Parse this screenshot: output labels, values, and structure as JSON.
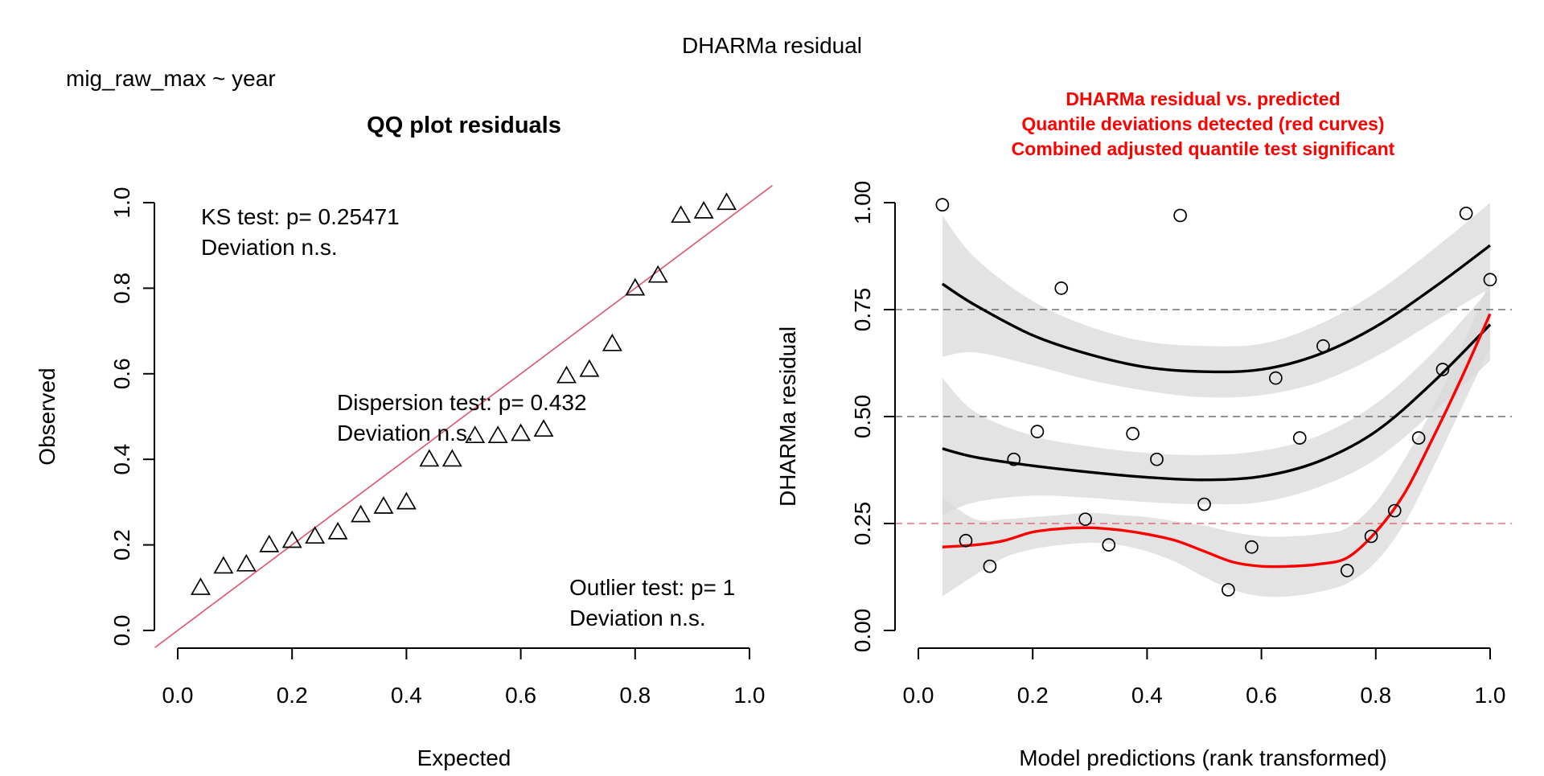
{
  "suptitle": "DHARMa residual",
  "formula": "mig_raw_max ~ year",
  "qq": {
    "title": "QQ plot residuals",
    "xlabel": "Expected",
    "ylabel": "Observed",
    "ks_line1": "KS test: p= 0.25471",
    "ks_line2": "Deviation  n.s.",
    "disp_line1": "Dispersion test: p= 0.432",
    "disp_line2": "Deviation  n.s.",
    "out_line1": "Outlier test: p= 1",
    "out_line2": "Deviation  n.s.",
    "line_color": "#DF536B"
  },
  "resid": {
    "title1": "DHARMa residual vs. predicted",
    "title2": "Quantile deviations detected (red curves)",
    "title3": "Combined adjusted quantile test significant",
    "title_color": "#FF0000",
    "xlabel": "Model predictions (rank transformed)",
    "ylabel": "DHARMa residual"
  },
  "chart_data": [
    {
      "type": "scatter",
      "title": "QQ plot residuals",
      "xlabel": "Expected",
      "ylabel": "Observed",
      "xlim": [
        0,
        1
      ],
      "ylim": [
        0,
        1
      ],
      "xticks": [
        "0.0",
        "0.2",
        "0.4",
        "0.6",
        "0.8",
        "1.0"
      ],
      "yticks": [
        "0.0",
        "0.2",
        "0.4",
        "0.6",
        "0.8",
        "1.0"
      ],
      "marker": "triangle",
      "points": [
        [
          0.04,
          0.1
        ],
        [
          0.08,
          0.15
        ],
        [
          0.12,
          0.155
        ],
        [
          0.16,
          0.2
        ],
        [
          0.2,
          0.21
        ],
        [
          0.24,
          0.22
        ],
        [
          0.28,
          0.23
        ],
        [
          0.32,
          0.27
        ],
        [
          0.36,
          0.29
        ],
        [
          0.4,
          0.3
        ],
        [
          0.44,
          0.4
        ],
        [
          0.48,
          0.4
        ],
        [
          0.52,
          0.455
        ],
        [
          0.56,
          0.455
        ],
        [
          0.6,
          0.46
        ],
        [
          0.64,
          0.47
        ],
        [
          0.68,
          0.595
        ],
        [
          0.72,
          0.61
        ],
        [
          0.76,
          0.67
        ],
        [
          0.8,
          0.8
        ],
        [
          0.84,
          0.83
        ],
        [
          0.88,
          0.97
        ],
        [
          0.92,
          0.98
        ],
        [
          0.96,
          1.0
        ]
      ],
      "reference_line": [
        [
          0,
          0
        ],
        [
          1,
          1
        ]
      ]
    },
    {
      "type": "scatter",
      "title": "DHARMa residual vs. predicted",
      "xlabel": "Model predictions (rank transformed)",
      "ylabel": "DHARMa residual",
      "xlim": [
        0,
        1
      ],
      "ylim": [
        0,
        1
      ],
      "xticks": [
        "0.0",
        "0.2",
        "0.4",
        "0.6",
        "0.8",
        "1.0"
      ],
      "yticks": [
        "0.00",
        "0.25",
        "0.50",
        "0.75",
        "1.00"
      ],
      "marker": "circle",
      "points": [
        [
          0.042,
          0.995
        ],
        [
          0.083,
          0.21
        ],
        [
          0.125,
          0.15
        ],
        [
          0.167,
          0.4
        ],
        [
          0.208,
          0.465
        ],
        [
          0.25,
          0.8
        ],
        [
          0.292,
          0.26
        ],
        [
          0.333,
          0.2
        ],
        [
          0.375,
          0.46
        ],
        [
          0.417,
          0.4
        ],
        [
          0.458,
          0.97
        ],
        [
          0.5,
          0.295
        ],
        [
          0.542,
          0.095
        ],
        [
          0.583,
          0.195
        ],
        [
          0.625,
          0.59
        ],
        [
          0.667,
          0.45
        ],
        [
          0.708,
          0.665
        ],
        [
          0.75,
          0.14
        ],
        [
          0.792,
          0.22
        ],
        [
          0.833,
          0.28
        ],
        [
          0.875,
          0.45
        ],
        [
          0.917,
          0.61
        ],
        [
          0.958,
          0.975
        ],
        [
          1.0,
          0.82
        ]
      ],
      "reference_lines": [
        {
          "y": 0.25,
          "color": "#DF536B",
          "style": "dashed"
        },
        {
          "y": 0.5,
          "color": "#555555",
          "style": "dashed"
        },
        {
          "y": 0.75,
          "color": "#555555",
          "style": "dashed"
        }
      ],
      "quantile_curves": [
        {
          "quantile": 0.75,
          "color": "#000000",
          "x": [
            0.042,
            0.1,
            0.2,
            0.3,
            0.4,
            0.5,
            0.6,
            0.7,
            0.8,
            0.9,
            1.0
          ],
          "y": [
            0.81,
            0.76,
            0.69,
            0.645,
            0.615,
            0.605,
            0.61,
            0.645,
            0.71,
            0.8,
            0.9
          ],
          "band_lower": [
            0.64,
            0.65,
            0.62,
            0.585,
            0.56,
            0.545,
            0.55,
            0.58,
            0.64,
            0.72,
            0.8
          ],
          "band_upper": [
            0.97,
            0.87,
            0.77,
            0.71,
            0.675,
            0.665,
            0.67,
            0.715,
            0.79,
            0.89,
            1.0
          ]
        },
        {
          "quantile": 0.5,
          "color": "#000000",
          "x": [
            0.042,
            0.1,
            0.2,
            0.3,
            0.4,
            0.5,
            0.6,
            0.7,
            0.8,
            0.9,
            1.0
          ],
          "y": [
            0.425,
            0.405,
            0.385,
            0.37,
            0.358,
            0.352,
            0.36,
            0.395,
            0.465,
            0.58,
            0.715
          ],
          "band_lower": [
            0.27,
            0.3,
            0.315,
            0.31,
            0.3,
            0.295,
            0.3,
            0.335,
            0.4,
            0.51,
            0.63
          ],
          "band_upper": [
            0.59,
            0.51,
            0.455,
            0.43,
            0.415,
            0.41,
            0.42,
            0.455,
            0.53,
            0.65,
            0.8
          ]
        },
        {
          "quantile": 0.25,
          "color": "#FF0000",
          "x": [
            0.042,
            0.1,
            0.15,
            0.2,
            0.25,
            0.3,
            0.35,
            0.4,
            0.45,
            0.5,
            0.55,
            0.6,
            0.65,
            0.7,
            0.75,
            0.8,
            0.85,
            0.9,
            0.95,
            1.0
          ],
          "y": [
            0.195,
            0.2,
            0.21,
            0.23,
            0.238,
            0.24,
            0.235,
            0.225,
            0.21,
            0.185,
            0.16,
            0.15,
            0.15,
            0.155,
            0.17,
            0.23,
            0.32,
            0.45,
            0.59,
            0.74
          ],
          "band_lower": [
            0.08,
            0.13,
            0.17,
            0.19,
            0.2,
            0.205,
            0.2,
            0.185,
            0.16,
            0.125,
            0.095,
            0.08,
            0.08,
            0.09,
            0.11,
            0.16,
            0.25,
            0.38,
            0.52,
            0.66
          ],
          "band_upper": [
            0.31,
            0.26,
            0.26,
            0.265,
            0.27,
            0.275,
            0.27,
            0.265,
            0.255,
            0.245,
            0.23,
            0.22,
            0.22,
            0.225,
            0.24,
            0.3,
            0.4,
            0.52,
            0.66,
            0.82
          ]
        }
      ]
    }
  ]
}
